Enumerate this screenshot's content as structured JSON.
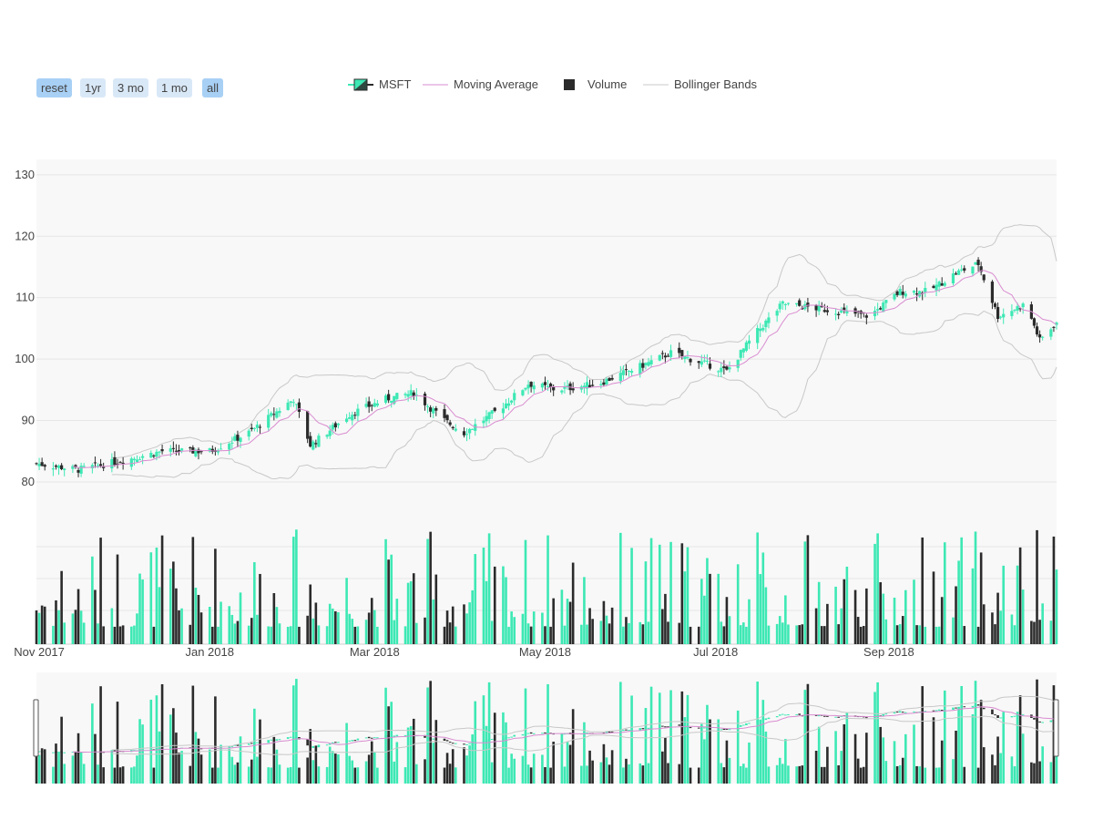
{
  "range_selector": {
    "buttons": [
      {
        "label": "reset",
        "active": true
      },
      {
        "label": "1yr",
        "active": false
      },
      {
        "label": "3 mo",
        "active": false
      },
      {
        "label": "1 mo",
        "active": false
      },
      {
        "label": "all",
        "active": true
      }
    ]
  },
  "legend": {
    "items": [
      {
        "label": "MSFT",
        "symbol": "candlestick"
      },
      {
        "label": "Moving Average",
        "symbol": "line"
      },
      {
        "label": "Volume",
        "symbol": "bar"
      },
      {
        "label": "Bollinger Bands",
        "symbol": "line"
      }
    ]
  },
  "colors": {
    "increasing": "#3de8b4",
    "decreasing": "#2b2b2b",
    "moving_average": "#d98cd0",
    "bollinger": "#c8c8c8",
    "plot_bg": "#f8f8f8",
    "grid": "#e6e6e6"
  },
  "chart_data": {
    "type": "candlestick",
    "ticker": "MSFT",
    "x_start": "2017-10-31",
    "x_end": "2018-10-31",
    "x_tick_labels": [
      "Nov 2017",
      "Jan 2018",
      "Mar 2018",
      "May 2018",
      "Jul 2018",
      "Sep 2018"
    ],
    "y_tick_labels": [
      "80",
      "90",
      "100",
      "110",
      "120",
      "130"
    ],
    "price_ylim": [
      70.5,
      132.5
    ],
    "grid": true,
    "legend_position": "top-center",
    "range_slider": true,
    "price_anchors": [
      [
        "2017-10-31",
        83
      ],
      [
        "2017-11-15",
        82
      ],
      [
        "2017-12-01",
        83.5
      ],
      [
        "2017-12-15",
        85
      ],
      [
        "2018-01-01",
        85
      ],
      [
        "2018-01-15",
        88
      ],
      [
        "2018-01-31",
        93.5
      ],
      [
        "2018-02-06",
        86
      ],
      [
        "2018-02-09",
        87
      ],
      [
        "2018-02-20",
        91
      ],
      [
        "2018-03-05",
        93.5
      ],
      [
        "2018-03-15",
        94.5
      ],
      [
        "2018-03-26",
        90
      ],
      [
        "2018-04-02",
        88
      ],
      [
        "2018-04-15",
        92
      ],
      [
        "2018-04-25",
        96
      ],
      [
        "2018-05-05",
        95
      ],
      [
        "2018-05-20",
        96
      ],
      [
        "2018-06-05",
        99
      ],
      [
        "2018-06-15",
        101
      ],
      [
        "2018-06-29",
        99
      ],
      [
        "2018-07-05",
        98
      ],
      [
        "2018-07-15",
        104
      ],
      [
        "2018-07-25",
        109
      ],
      [
        "2018-08-10",
        108
      ],
      [
        "2018-08-25",
        107
      ],
      [
        "2018-09-05",
        111
      ],
      [
        "2018-09-15",
        111
      ],
      [
        "2018-09-25",
        114
      ],
      [
        "2018-10-03",
        115.5
      ],
      [
        "2018-10-10",
        107
      ],
      [
        "2018-10-20",
        109
      ],
      [
        "2018-10-25",
        103
      ],
      [
        "2018-10-31",
        106
      ]
    ],
    "moving_average_window": 10,
    "bollinger_window": 20,
    "bollinger_width_std": 2
  }
}
